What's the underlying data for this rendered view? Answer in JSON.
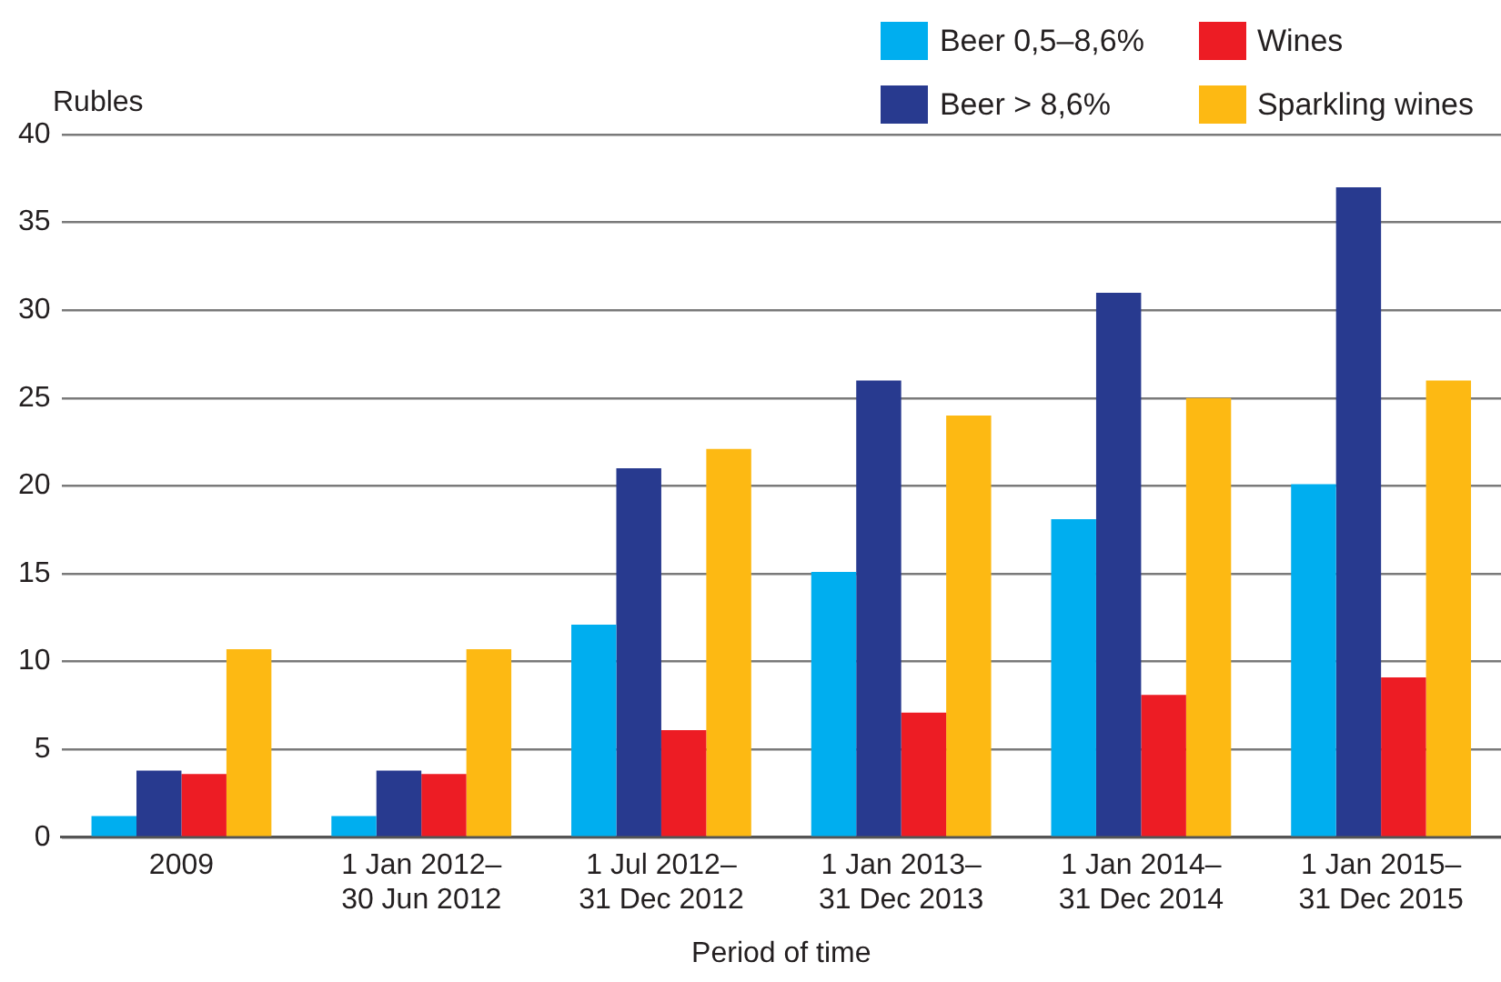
{
  "chart_data": {
    "type": "bar",
    "xlabel": "Period of time",
    "ylabel": "Rubles",
    "categories": [
      "2009",
      "1 Jan 2012– 30 Jun 2012",
      "1 Jul 2012– 31 Dec 2012",
      "1 Jan 2013– 31 Dec 2013",
      "1 Jan 2014– 31 Dec 2014",
      "1 Jan 2015– 31 Dec 2015"
    ],
    "series": [
      {
        "name": "Beer 0,5–8,6%",
        "color": "#00aeef",
        "values": [
          1.2,
          1.2,
          12.1,
          15.1,
          18.1,
          20.1
        ]
      },
      {
        "name": "Beer > 8,6%",
        "color": "#283a8f",
        "values": [
          3.8,
          3.8,
          21,
          26,
          31,
          37
        ]
      },
      {
        "name": "Wines",
        "color": "#ed1c24",
        "values": [
          3.6,
          3.6,
          6.1,
          7.1,
          8.1,
          9.1
        ]
      },
      {
        "name": "Sparkling wines",
        "color": "#fdb913",
        "values": [
          10.7,
          10.7,
          22.1,
          24,
          25,
          26
        ]
      }
    ],
    "ylim": [
      0,
      40
    ],
    "yticks": [
      0,
      5,
      10,
      15,
      20,
      25,
      30,
      35,
      40
    ],
    "grid": "y",
    "legend": "top right"
  }
}
